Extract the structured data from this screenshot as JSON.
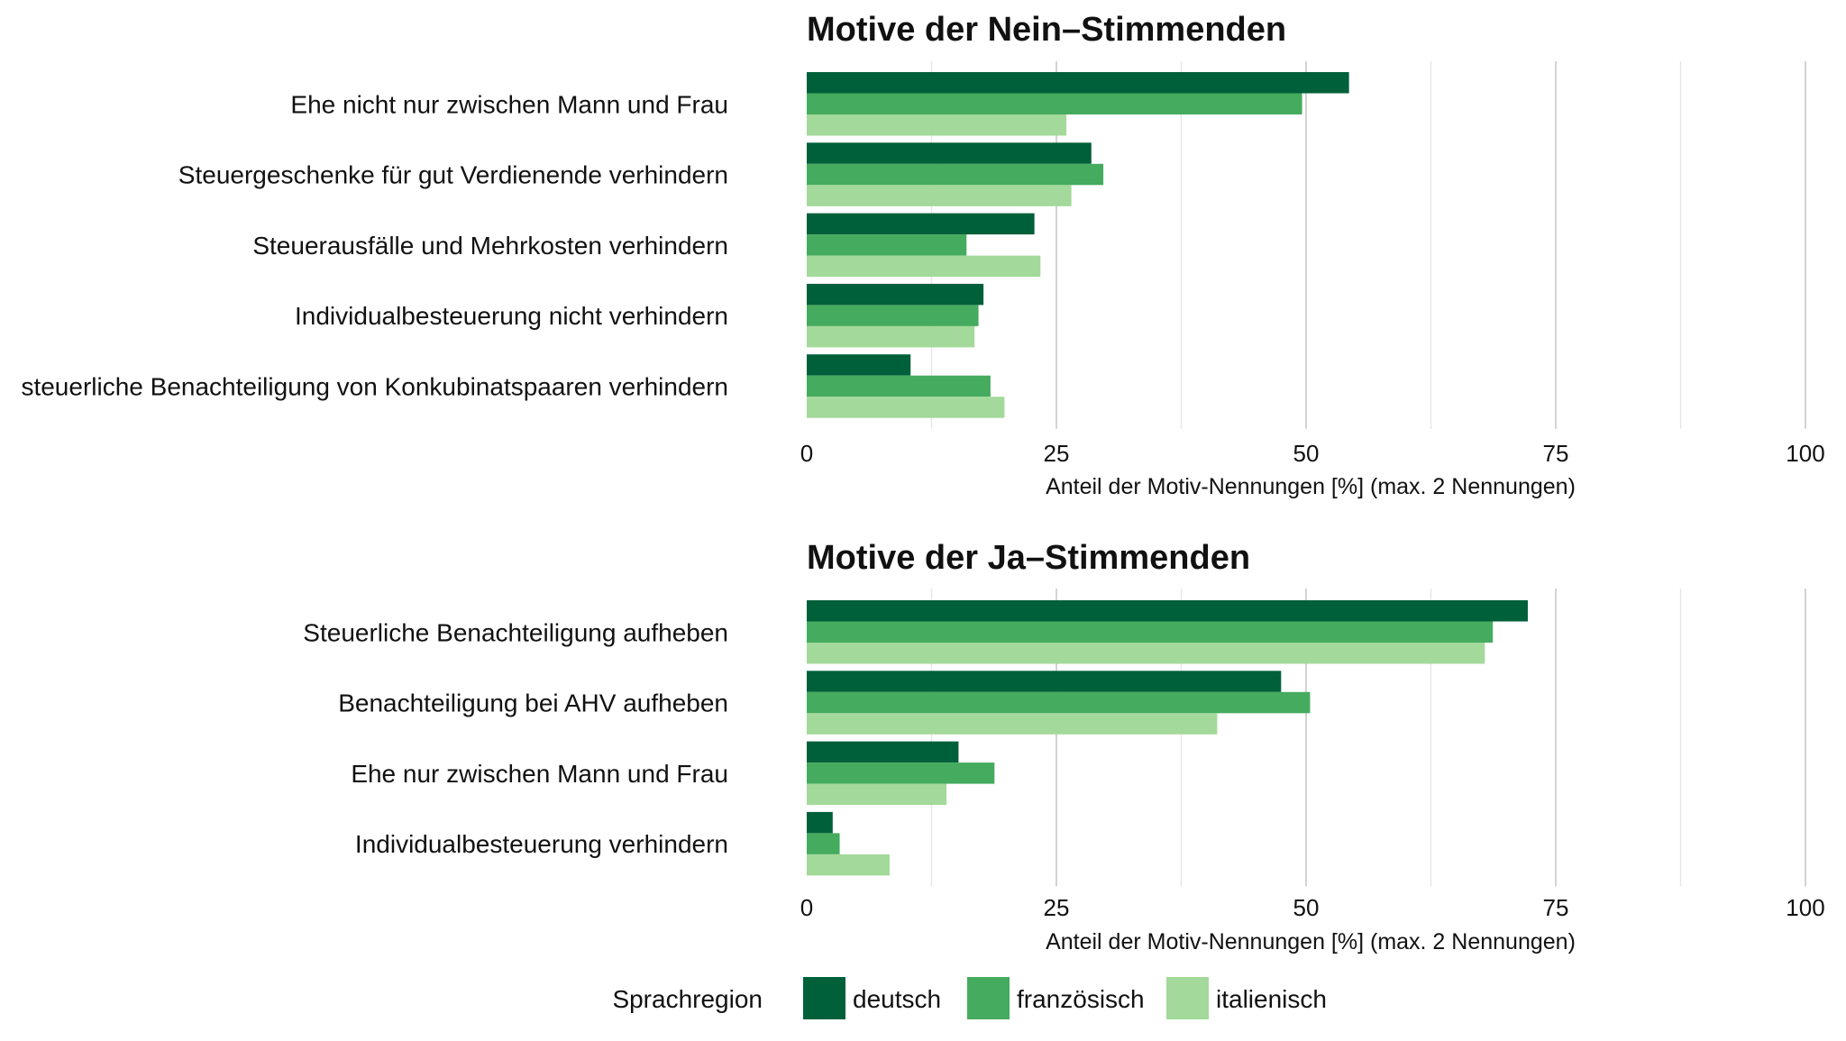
{
  "chart_data": [
    {
      "type": "bar",
      "orientation": "horizontal",
      "title": "Motive der Nein–Stimmenden",
      "xlabel": "Anteil der Motiv-Nennungen [%] (max. 2 Nennungen)",
      "xlim": [
        0,
        100
      ],
      "xticks": [
        "0",
        "25",
        "50",
        "75",
        "100"
      ],
      "categories": [
        "Ehe nicht nur zwischen Mann und Frau",
        "Steuergeschenke für gut Verdienende verhindern",
        "Steuerausfälle und Mehrkosten verhindern",
        "Individualbesteuerung nicht verhindern",
        "steuerliche Benachteiligung von Konkubinatspaaren verhindern"
      ],
      "series": [
        {
          "name": "deutsch",
          "values": [
            54.3,
            28.5,
            22.8,
            17.7,
            10.4
          ]
        },
        {
          "name": "französisch",
          "values": [
            49.6,
            29.7,
            16.0,
            17.2,
            18.4
          ]
        },
        {
          "name": "italienisch",
          "values": [
            26.0,
            26.5,
            23.4,
            16.8,
            19.8
          ]
        }
      ]
    },
    {
      "type": "bar",
      "orientation": "horizontal",
      "title": "Motive der Ja–Stimmenden",
      "xlabel": "Anteil der Motiv-Nennungen [%] (max. 2 Nennungen)",
      "xlim": [
        0,
        100
      ],
      "xticks": [
        "0",
        "25",
        "50",
        "75",
        "100"
      ],
      "categories": [
        "Steuerliche Benachteiligung aufheben",
        "Benachteiligung bei AHV aufheben",
        "Ehe nur zwischen Mann und Frau",
        "Individualbesteuerung verhindern"
      ],
      "series": [
        {
          "name": "deutsch",
          "values": [
            72.2,
            47.5,
            15.2,
            2.6
          ]
        },
        {
          "name": "französisch",
          "values": [
            68.7,
            50.4,
            18.8,
            3.3
          ]
        },
        {
          "name": "italienisch",
          "values": [
            67.9,
            41.1,
            14.0,
            8.3
          ]
        }
      ]
    }
  ],
  "legend": {
    "title": "Sprachregion",
    "items": [
      "deutsch",
      "französisch",
      "italienisch"
    ]
  },
  "colors": {
    "deutsch": "#00603a",
    "französisch": "#45ab5e",
    "italienisch": "#a3d99a"
  }
}
